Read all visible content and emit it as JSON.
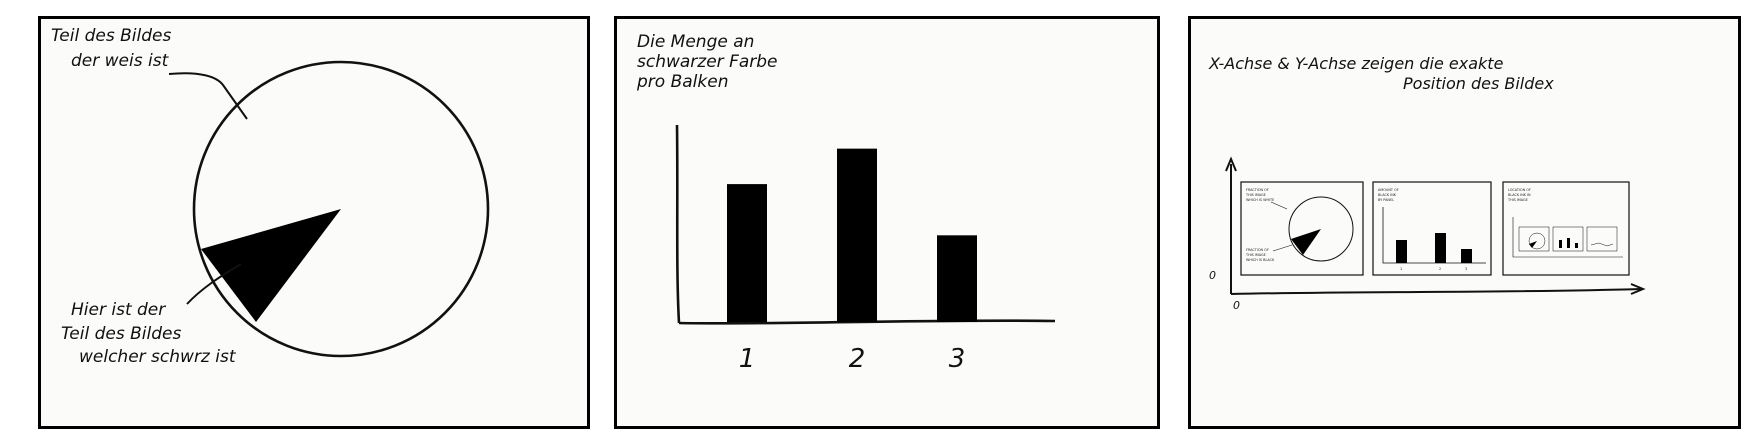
{
  "panels": {
    "panel1": {
      "white_label": [
        "Teil des Bildes",
        "der weis ist"
      ],
      "black_label": [
        "Hier ist der",
        "Teil des Bildes",
        "welcher schwrz ist"
      ],
      "pie": {
        "white_fraction": 0.87,
        "black_fraction": 0.13
      }
    },
    "panel2": {
      "title_lines": [
        "Die Menge an",
        "schwarzer Farbe",
        "pro Balken"
      ]
    },
    "panel3": {
      "title_lines": [
        "X-Achse & Y-Achse zeigen die exakte",
        "Position des Bildex"
      ],
      "origin_x": "0",
      "origin_y": "0"
    }
  },
  "chart_data": {
    "type": "bar",
    "categories": [
      "1",
      "2",
      "3"
    ],
    "values": [
      140,
      176,
      88
    ],
    "title": "Die Menge an schwarzer Farbe pro Balken",
    "xlabel": "",
    "ylabel": "",
    "ylim": [
      0,
      200
    ],
    "grid": false
  }
}
